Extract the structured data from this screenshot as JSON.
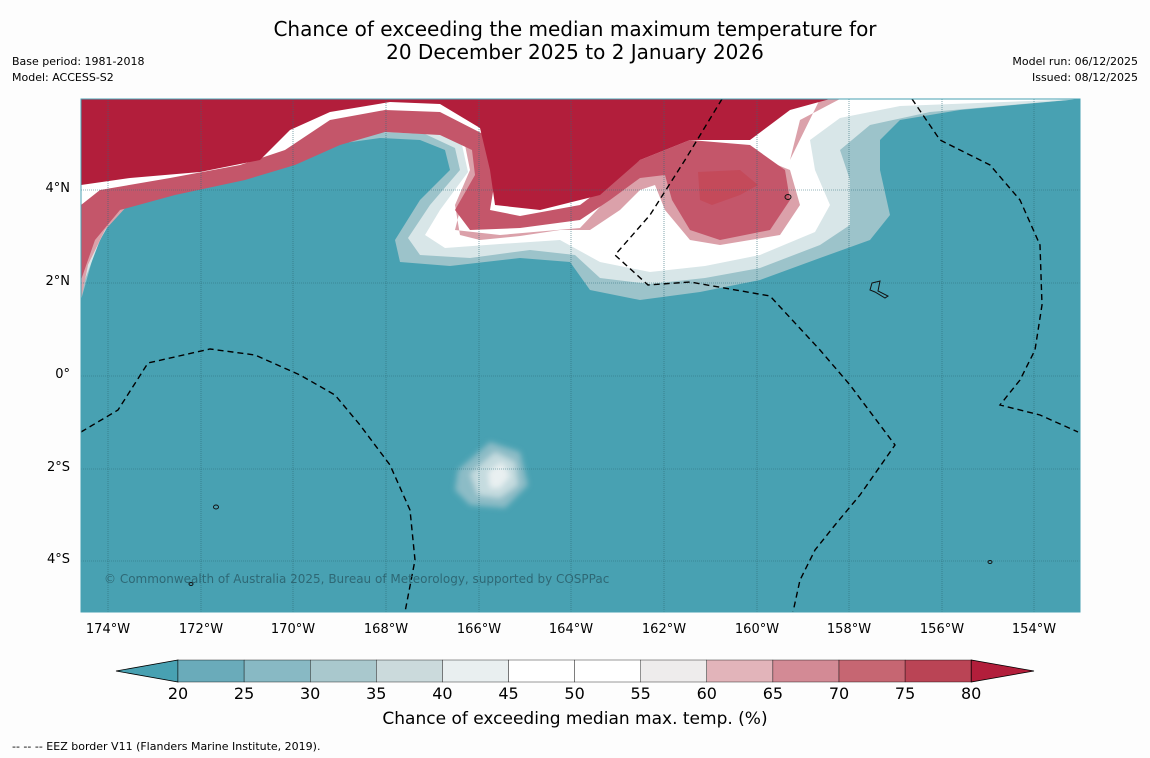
{
  "header": {
    "title_line1": "Chance of exceeding the median maximum temperature for",
    "title_line2": "20 December 2025 to 2 January 2026",
    "base_period": "Base period: 1981-2018",
    "model": "Model: ACCESS-S2",
    "model_run": "Model run: 06/12/2025",
    "issued": "Issued: 08/12/2025"
  },
  "map": {
    "lat_labels": [
      "4°N",
      "2°N",
      "0°",
      "2°S",
      "4°S"
    ],
    "lon_labels": [
      "174°W",
      "172°W",
      "170°W",
      "168°W",
      "166°W",
      "164°W",
      "162°W",
      "160°W",
      "158°W",
      "156°W",
      "154°W"
    ],
    "copyright": "© Commonwealth of Australia 2025, Bureau of Meteorology, supported by COSPPac",
    "background_color": "#48a1b2",
    "high_color": "#b21e3b"
  },
  "colorbar": {
    "ticks": [
      "20",
      "25",
      "30",
      "35",
      "40",
      "45",
      "50",
      "55",
      "60",
      "65",
      "70",
      "75",
      "80"
    ],
    "colors": [
      "#6aabba",
      "#88b9c4",
      "#a9c8cd",
      "#cbdadc",
      "#e9eff0",
      "#ffffff",
      "#ffffff",
      "#eeecec",
      "#e2b4ba",
      "#d38a95",
      "#c66672",
      "#ba4455"
    ],
    "low_color": "#48a1b2",
    "high_color": "#b21e3b",
    "label": "Chance of exceeding median max. temp. (%)"
  },
  "footer": {
    "eez_note": "--  --  -- EEZ border V11 (Flanders Marine Institute, 2019)."
  }
}
